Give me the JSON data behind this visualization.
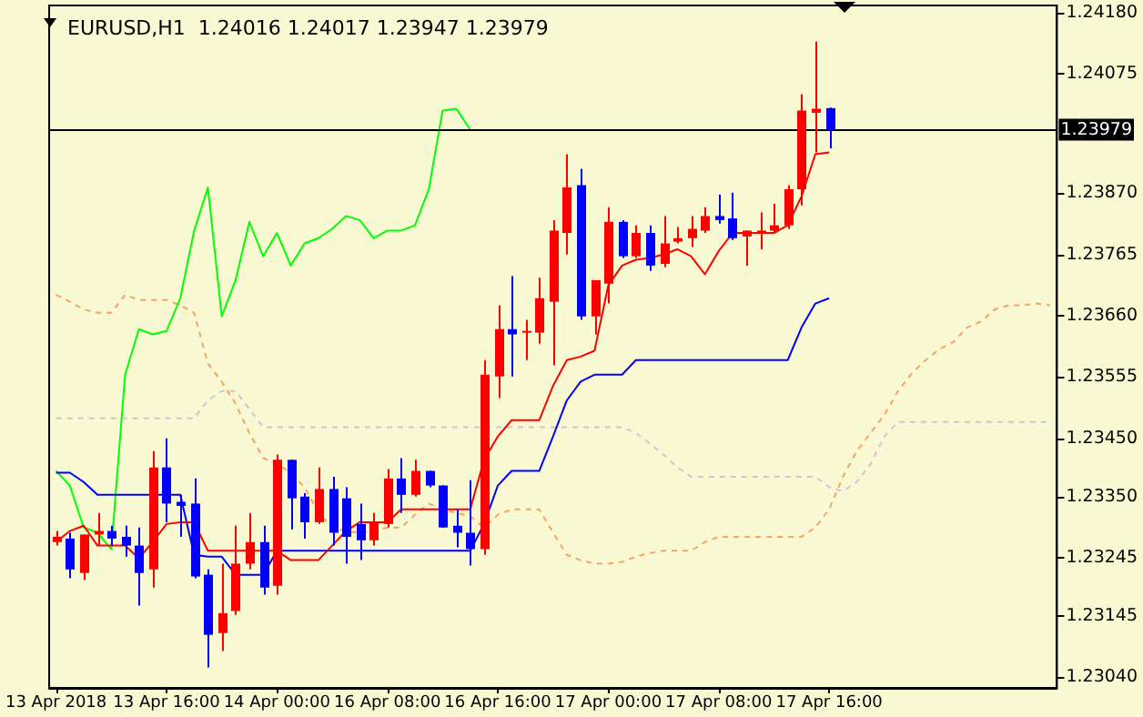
{
  "chart_data": {
    "type": "candlestick",
    "title": "EURUSD,H1  1.24016 1.24017 1.23947 1.23979",
    "categories": [
      "13 Apr 2018",
      null,
      null,
      null,
      null,
      null,
      null,
      null,
      "13 Apr 16:00",
      null,
      null,
      null,
      null,
      null,
      null,
      null,
      "14 Apr 00:00",
      null,
      null,
      null,
      null,
      null,
      null,
      null,
      "16 Apr 08:00",
      null,
      null,
      null,
      null,
      null,
      null,
      null,
      "16 Apr 16:00",
      null,
      null,
      null,
      null,
      null,
      null,
      null,
      "17 Apr 00:00",
      null,
      null,
      null,
      null,
      null,
      null,
      null,
      "17 Apr 08:00",
      null,
      null,
      null,
      null,
      null,
      null,
      null,
      "17 Apr 16:00",
      null,
      null,
      null,
      null,
      null,
      null,
      null,
      null,
      null,
      null,
      null,
      null,
      null,
      null,
      null,
      null
    ],
    "ohlc": [
      [
        1.23272,
        1.23291,
        1.23266,
        1.23281
      ],
      [
        1.23278,
        1.23288,
        1.2321,
        1.23225
      ],
      [
        1.23219,
        1.23285,
        1.23207,
        1.23285
      ],
      [
        1.23285,
        1.23322,
        1.23266,
        1.23291
      ],
      [
        1.23291,
        1.233,
        1.23266,
        1.23278
      ],
      [
        1.23281,
        1.233,
        1.23247,
        1.23266
      ],
      [
        1.23266,
        1.23297,
        1.23163,
        1.23219
      ],
      [
        1.23225,
        1.23428,
        1.23194,
        1.234
      ],
      [
        1.234,
        1.2345,
        1.23306,
        1.23338
      ],
      [
        1.23341,
        1.23353,
        1.23281,
        1.23334
      ],
      [
        1.23338,
        1.23381,
        1.2321,
        1.23213
      ],
      [
        1.23216,
        1.23225,
        1.23057,
        1.23113
      ],
      [
        1.23116,
        1.23235,
        1.23085,
        1.2315
      ],
      [
        1.23154,
        1.233,
        1.23147,
        1.23235
      ],
      [
        1.23235,
        1.23322,
        1.23225,
        1.23272
      ],
      [
        1.23272,
        1.233,
        1.23182,
        1.23194
      ],
      [
        1.23197,
        1.23422,
        1.23182,
        1.23413
      ],
      [
        1.23413,
        1.23413,
        1.23294,
        1.23347
      ],
      [
        1.2335,
        1.23356,
        1.23278,
        1.23306
      ],
      [
        1.23306,
        1.234,
        1.23303,
        1.23363
      ],
      [
        1.23363,
        1.23384,
        1.23266,
        1.23288
      ],
      [
        1.23347,
        1.23366,
        1.23235,
        1.23281
      ],
      [
        1.23303,
        1.23338,
        1.23241,
        1.23275
      ],
      [
        1.23275,
        1.23322,
        1.23266,
        1.23306
      ],
      [
        1.23303,
        1.23397,
        1.23297,
        1.23381
      ],
      [
        1.23381,
        1.23416,
        1.23322,
        1.23353
      ],
      [
        1.23353,
        1.23413,
        1.2335,
        1.23394
      ],
      [
        1.23394,
        1.23394,
        1.23366,
        1.23369
      ],
      [
        1.23369,
        1.23369,
        1.23297,
        1.23297
      ],
      [
        1.233,
        1.23328,
        1.23263,
        1.23288
      ],
      [
        1.23288,
        1.23378,
        1.23232,
        1.2326
      ],
      [
        1.2326,
        1.23584,
        1.2325,
        1.23559
      ],
      [
        1.23556,
        1.23678,
        1.23519,
        1.23637
      ],
      [
        1.23637,
        1.23728,
        1.23556,
        1.23628
      ],
      [
        1.23631,
        1.23653,
        1.23584,
        1.23634
      ],
      [
        1.23631,
        1.23725,
        1.23612,
        1.2369
      ],
      [
        1.23684,
        1.23824,
        1.23575,
        1.23806
      ],
      [
        1.23802,
        1.23937,
        1.23765,
        1.2388
      ],
      [
        1.23884,
        1.23912,
        1.23653,
        1.23659
      ],
      [
        1.23659,
        1.23721,
        1.23628,
        1.23721
      ],
      [
        1.23715,
        1.23846,
        1.23681,
        1.23821
      ],
      [
        1.23821,
        1.23824,
        1.23759,
        1.23762
      ],
      [
        1.23762,
        1.23815,
        1.23759,
        1.23802
      ],
      [
        1.23802,
        1.23815,
        1.23737,
        1.23746
      ],
      [
        1.23749,
        1.23831,
        1.23743,
        1.23784
      ],
      [
        1.23787,
        1.23812,
        1.23784,
        1.23793
      ],
      [
        1.23793,
        1.23831,
        1.23778,
        1.23809
      ],
      [
        1.23806,
        1.23846,
        1.23802,
        1.23831
      ],
      [
        1.23831,
        1.23868,
        1.23818,
        1.23824
      ],
      [
        1.23827,
        1.23871,
        1.2379,
        1.23793
      ],
      [
        1.23796,
        1.23806,
        1.23746,
        1.23806
      ],
      [
        1.23802,
        1.23837,
        1.23774,
        1.23806
      ],
      [
        1.23806,
        1.23852,
        1.23802,
        1.23815
      ],
      [
        1.23815,
        1.23884,
        1.23809,
        1.23877
      ],
      [
        1.23877,
        1.2404,
        1.23849,
        1.24012
      ],
      [
        1.24008,
        1.2413,
        1.2394,
        1.24015
      ],
      [
        1.24016,
        1.24017,
        1.23947,
        1.23979
      ],
      null,
      null,
      null,
      null,
      null,
      null,
      null,
      null,
      null,
      null,
      null,
      null,
      null,
      null,
      null,
      null
    ],
    "colors": [
      "#ff0000",
      "#0000ff",
      "#ff0000",
      "#ff0000",
      "#0000ff",
      "#0000ff",
      "#0000ff",
      "#ff0000",
      "#0000ff",
      "#0000ff",
      "#0000ff",
      "#0000ff",
      "#ff0000",
      "#ff0000",
      "#ff0000",
      "#0000ff",
      "#ff0000",
      "#0000ff",
      "#0000ff",
      "#ff0000",
      "#0000ff",
      "#0000ff",
      "#0000ff",
      "#ff0000",
      "#ff0000",
      "#0000ff",
      "#ff0000",
      "#0000ff",
      "#0000ff",
      "#0000ff",
      "#0000ff",
      "#ff0000",
      "#ff0000",
      "#0000ff",
      "#ff0000",
      "#ff0000",
      "#ff0000",
      "#ff0000",
      "#0000ff",
      "#ff0000",
      "#ff0000",
      "#0000ff",
      "#ff0000",
      "#0000ff",
      "#ff0000",
      "#ff0000",
      "#ff0000",
      "#ff0000",
      "#0000ff",
      "#0000ff",
      "#ff0000",
      "#ff0000",
      "#ff0000",
      "#ff0000",
      "#ff0000",
      "#ff0000",
      "#0000ff",
      null,
      null,
      null,
      null,
      null,
      null,
      null,
      null,
      null,
      null,
      null,
      null,
      null,
      null,
      null,
      null
    ],
    "series": [
      {
        "type": "line",
        "color": "#f4a460",
        "line_style": "dashed",
        "values": [
          1.23696,
          1.23684,
          1.23671,
          1.23665,
          1.23665,
          1.23696,
          1.23687,
          1.23687,
          1.23687,
          1.23678,
          1.23665,
          1.23578,
          1.23547,
          1.23509,
          1.23459,
          1.23416,
          1.23406,
          1.23391,
          1.23366,
          1.23322,
          1.23297,
          1.23291,
          1.23288,
          1.23291,
          1.23297,
          1.23297,
          1.23319,
          1.23338,
          1.23328,
          1.23322,
          1.23316,
          1.23297,
          1.23319,
          1.23328,
          1.23328,
          1.23328,
          1.23288,
          1.2325,
          1.23241,
          1.23235,
          1.23235,
          1.23238,
          1.23247,
          1.23253,
          1.23257,
          1.23257,
          1.23257,
          1.23272,
          1.23281,
          1.23281,
          1.23281,
          1.23281,
          1.23281,
          1.23281,
          1.23281,
          1.23297,
          1.23328,
          1.23384,
          1.23428,
          1.23459,
          1.2349,
          1.23531,
          1.23562,
          1.23584,
          1.23603,
          1.23615,
          1.2364,
          1.2365,
          1.23671,
          1.23678,
          1.23678,
          1.23681,
          1.23678
        ]
      },
      {
        "type": "line",
        "color": "#d8bfd8",
        "line_style": "dashed",
        "values": [
          1.23484,
          1.23484,
          1.23484,
          1.23484,
          1.23484,
          1.23484,
          1.23484,
          1.23484,
          1.23484,
          1.23484,
          1.23484,
          1.23515,
          1.23531,
          1.23531,
          1.235,
          1.23469,
          1.23469,
          1.23469,
          1.23469,
          1.23469,
          1.23469,
          1.23469,
          1.23469,
          1.23469,
          1.23469,
          1.23469,
          1.23469,
          1.23469,
          1.23469,
          1.23469,
          1.23469,
          1.23469,
          1.23469,
          1.23469,
          1.23469,
          1.23469,
          1.23469,
          1.23469,
          1.23469,
          1.23469,
          1.23469,
          1.23469,
          1.23459,
          1.23441,
          1.23422,
          1.234,
          1.23384,
          1.23384,
          1.23384,
          1.23384,
          1.23384,
          1.23384,
          1.23384,
          1.23384,
          1.23384,
          1.23384,
          1.23366,
          1.23359,
          1.23375,
          1.23406,
          1.23453,
          1.23478,
          1.23478,
          1.23478,
          1.23478,
          1.23478,
          1.23478,
          1.23478,
          1.23478,
          1.23478,
          1.23478,
          1.23478,
          1.23478
        ]
      },
      {
        "type": "line",
        "color": "#00ff00",
        "line_style": "solid",
        "values": [
          1.23394,
          1.23369,
          1.23297,
          1.23288,
          1.2326,
          1.23559,
          1.23637,
          1.23628,
          1.23634,
          1.2369,
          1.23806,
          1.2388,
          1.23659,
          1.23721,
          1.23821,
          1.23762,
          1.23802,
          1.23746,
          1.23784,
          1.23793,
          1.23809,
          1.23831,
          1.23824,
          1.23793,
          1.23806,
          1.23806,
          1.23815,
          1.23877,
          1.24012,
          1.24015,
          1.23979,
          null,
          null,
          null,
          null,
          null,
          null,
          null,
          null,
          null,
          null,
          null,
          null,
          null,
          null,
          null,
          null,
          null,
          null,
          null,
          null,
          null,
          null,
          null,
          null,
          null,
          null,
          null,
          null,
          null,
          null,
          null,
          null,
          null,
          null,
          null,
          null,
          null,
          null,
          null,
          null,
          null,
          null
        ]
      },
      {
        "type": "line",
        "color": "#0000ff",
        "line_style": "solid",
        "values": [
          1.23391,
          1.23391,
          1.23375,
          1.23353,
          1.23353,
          1.23353,
          1.23353,
          1.23353,
          1.23353,
          1.23353,
          1.2325,
          1.23247,
          1.23247,
          1.23216,
          1.23216,
          1.23216,
          1.23257,
          1.23257,
          1.23257,
          1.23257,
          1.23257,
          1.23257,
          1.23257,
          1.23257,
          1.23257,
          1.23257,
          1.23257,
          1.23257,
          1.23257,
          1.23257,
          1.23257,
          1.23303,
          1.23369,
          1.23394,
          1.23394,
          1.23394,
          1.23453,
          1.23515,
          1.23547,
          1.23559,
          1.23559,
          1.23559,
          1.23584,
          1.23584,
          1.23584,
          1.23584,
          1.23584,
          1.23584,
          1.23584,
          1.23584,
          1.23584,
          1.23584,
          1.23584,
          1.23584,
          1.2364,
          1.23681,
          1.2369,
          null,
          null,
          null,
          null,
          null,
          null,
          null,
          null,
          null,
          null,
          null,
          null,
          null,
          null,
          null,
          null
        ]
      },
      {
        "type": "line",
        "color": "#ff0000",
        "line_style": "solid",
        "values": [
          1.23272,
          1.23291,
          1.233,
          1.23266,
          1.23266,
          1.23266,
          1.23244,
          1.23272,
          1.23303,
          1.23306,
          1.23306,
          1.23257,
          1.23257,
          1.23257,
          1.23257,
          1.23257,
          1.23257,
          1.23241,
          1.23241,
          1.23241,
          1.23266,
          1.23291,
          1.23306,
          1.23306,
          1.23306,
          1.23328,
          1.23328,
          1.23328,
          1.23328,
          1.23328,
          1.23328,
          1.23413,
          1.23453,
          1.23481,
          1.23481,
          1.23481,
          1.2354,
          1.23584,
          1.2359,
          1.236,
          1.23712,
          1.23746,
          1.23756,
          1.23759,
          1.23765,
          1.23774,
          1.23762,
          1.23731,
          1.23771,
          1.23802,
          1.23802,
          1.23802,
          1.23802,
          1.23815,
          1.23865,
          1.23937,
          1.2394,
          null,
          null,
          null,
          null,
          null,
          null,
          null,
          null,
          null,
          null,
          null,
          null,
          null,
          null,
          null,
          null
        ]
      }
    ],
    "ylim": [
      1.23022,
      1.24192
    ],
    "yticks": [
      {
        "value": 1.2418,
        "label": "1.24180"
      },
      1.24075,
      {
        "value": 1.2387,
        "label": "1.23870"
      },
      1.23765,
      {
        "value": 1.2366,
        "label": "1.23660"
      },
      1.23555,
      {
        "value": 1.2345,
        "label": "1.23450"
      },
      {
        "value": 1.2335,
        "label": "1.23350"
      },
      1.23245,
      1.23145,
      {
        "value": 1.2304,
        "label": "1.23040"
      }
    ],
    "ref_lines": [
      {
        "axis": "y",
        "value": 1.23979,
        "label": "1.23979",
        "color": "#000000"
      }
    ],
    "grid": false,
    "marker": "none"
  }
}
